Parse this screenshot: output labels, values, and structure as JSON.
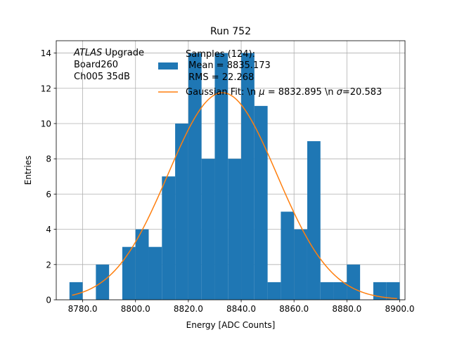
{
  "chart_data": {
    "type": "bar",
    "title": "Run 752",
    "xlabel": "Energy [ADC Counts]",
    "ylabel": "Entries",
    "xlim": [
      8770.0,
      8902.0
    ],
    "ylim": [
      0,
      14.7
    ],
    "grid": true,
    "x_ticks": [
      8780.0,
      8800.0,
      8820.0,
      8840.0,
      8860.0,
      8880.0,
      8900.0
    ],
    "x_tick_labels": [
      "8780.0",
      "8800.0",
      "8820.0",
      "8840.0",
      "8860.0",
      "8880.0",
      "8900.0"
    ],
    "y_ticks": [
      0,
      2,
      4,
      6,
      8,
      10,
      12,
      14
    ],
    "y_tick_labels": [
      "0",
      "2",
      "4",
      "6",
      "8",
      "10",
      "12",
      "14"
    ],
    "bin_edges": [
      8775,
      8780,
      8785,
      8790,
      8795,
      8800,
      8805,
      8810,
      8815,
      8820,
      8825,
      8830,
      8835,
      8840,
      8845,
      8850,
      8855,
      8860,
      8865,
      8870,
      8875,
      8880,
      8885,
      8890,
      8895,
      8900
    ],
    "counts": [
      1,
      0,
      2,
      0,
      3,
      4,
      3,
      7,
      10,
      14,
      8,
      14,
      8,
      14,
      11,
      1,
      5,
      4,
      9,
      1,
      1,
      2,
      0,
      1,
      1
    ],
    "series": [
      {
        "name": "Samples (124):\n Mean = 8835.173\n RMS = 22.268",
        "kind": "histogram",
        "color": "#1f77b4"
      },
      {
        "name": "Gaussian Fit: \\n $\\mu$ = 8832.895 \\n $\\sigma$=20.583",
        "kind": "line",
        "color": "#ff7f0e"
      }
    ],
    "fit": {
      "amplitude": 11.75,
      "mu": 8832.895,
      "sigma": 20.583,
      "x_range": [
        8776,
        8899
      ]
    },
    "annotation": {
      "atlas_label": "ATLAS",
      "upgrade_label": " Upgrade",
      "board": "Board260",
      "channel": "Ch005 35dB"
    },
    "legend": {
      "placement": "top-center",
      "entry1_lines": [
        "Samples (124):",
        " Mean = 8835.173",
        " RMS = 22.268"
      ],
      "entry2_prefix": "Gaussian Fit: \\n ",
      "entry2_mu_symbol": "μ",
      "entry2_mid": " = 8832.895 \\n ",
      "entry2_sigma_symbol": "σ",
      "entry2_suffix": "=20.583"
    }
  }
}
